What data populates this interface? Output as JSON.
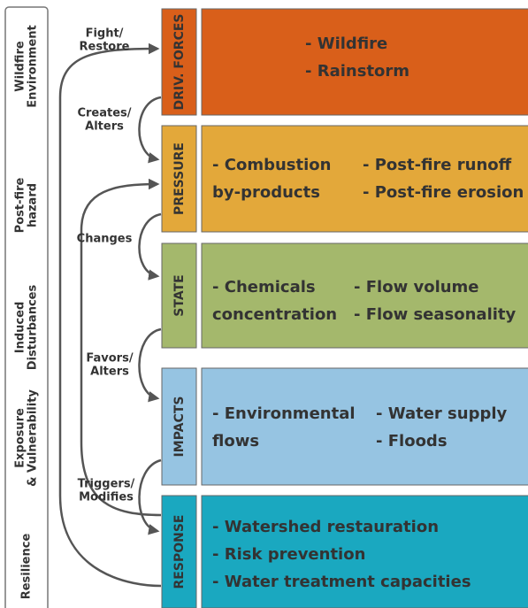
{
  "left_labels": [
    {
      "lines": [
        "Wildfire",
        "Environment"
      ]
    },
    {
      "lines": [
        "Post-fire",
        "hazard"
      ]
    },
    {
      "lines": [
        "Induced",
        "Disturbances"
      ]
    },
    {
      "lines": [
        "Exposure",
        "& Vulnerability"
      ]
    },
    {
      "lines": [
        "Resilience"
      ]
    }
  ],
  "arrow_labels": [
    {
      "lines": [
        "Fight/",
        "Restore"
      ]
    },
    {
      "lines": [
        "Creates/",
        "Alters"
      ]
    },
    {
      "lines": [
        "Changes"
      ]
    },
    {
      "lines": [
        "Favors/",
        "Alters"
      ]
    },
    {
      "lines": [
        "Triggers/",
        "Modifies"
      ]
    }
  ],
  "stages": [
    {
      "label": "DRIV. FORCES",
      "columns": [
        [
          "- Wildfire",
          "- Rainstorm"
        ]
      ]
    },
    {
      "label": "PRESSURE",
      "columns": [
        [
          "- Combustion",
          "by-products"
        ],
        [
          "- Post-fire runoff",
          "- Post-fire erosion"
        ]
      ]
    },
    {
      "label": "STATE",
      "columns": [
        [
          "- Chemicals",
          "concentration"
        ],
        [
          "- Flow volume",
          "- Flow seasonality"
        ]
      ]
    },
    {
      "label": "IMPACTS",
      "columns": [
        [
          "- Environmental",
          "flows"
        ],
        [
          "- Water supply",
          "- Floods"
        ]
      ]
    },
    {
      "label": "RESPONSE",
      "columns": [
        [
          "- Watershed restauration",
          "- Risk prevention",
          "- Water treatment capacities"
        ]
      ]
    }
  ]
}
